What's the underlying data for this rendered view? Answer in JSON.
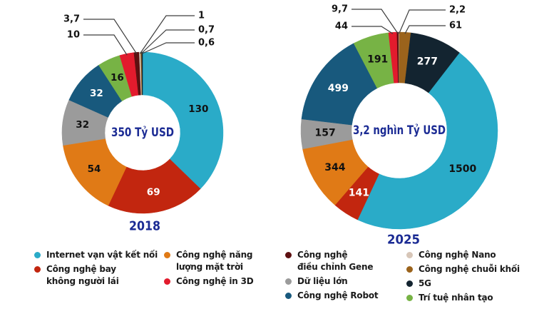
{
  "series": [
    {
      "id": "internet",
      "label": "Internet vạn vật kết nối",
      "legend_label": "Internet vạn vật kết nối",
      "color": "#2aabc8",
      "value_text_color": "#111111"
    },
    {
      "id": "drone",
      "label": "Công nghệ bay không người lái",
      "legend_label": "Công nghệ bay\nkhông người lái",
      "color": "#c2260f",
      "value_text_color": "#ffffff"
    },
    {
      "id": "solar",
      "label": "Công nghệ năng lượng mặt trời",
      "legend_label": "Công nghệ năng\nlượng mặt trời",
      "color": "#e07a16",
      "value_text_color": "#111111"
    },
    {
      "id": "bigdata",
      "label": "Dữ liệu lớn",
      "legend_label": "Dữ liệu lớn",
      "color": "#9b9b9b",
      "value_text_color": "#111111"
    },
    {
      "id": "robot",
      "label": "Công nghệ Robot",
      "legend_label": "Công nghệ Robot",
      "color": "#18597d",
      "value_text_color": "#ffffff"
    },
    {
      "id": "ai",
      "label": "Trí tuệ nhân tạo",
      "legend_label": "Trí tuệ nhân tạo",
      "color": "#77b345",
      "value_text_color": "#111111"
    },
    {
      "id": "print3d",
      "label": "Công nghệ in 3D",
      "legend_label": "Công nghệ in 3D",
      "color": "#e21b2d",
      "value_text_color": "#ffffff"
    },
    {
      "id": "gene",
      "label": "Công nghệ điều chỉnh Gene",
      "legend_label": "Công nghệ\nđiều chỉnh Gene",
      "color": "#5d1011",
      "value_text_color": "#ffffff"
    },
    {
      "id": "nano",
      "label": "Công nghệ Nano",
      "legend_label": "Công nghệ Nano",
      "color": "#d7c6b8",
      "value_text_color": "#111111"
    },
    {
      "id": "blockchain",
      "label": "Công nghệ chuỗi khối",
      "legend_label": "Công nghệ chuỗi khối",
      "color": "#9b631c",
      "value_text_color": "#ffffff"
    },
    {
      "id": "fiveg",
      "label": "5G",
      "legend_label": "5G",
      "color": "#132430",
      "value_text_color": "#ffffff"
    }
  ],
  "chart_data": [
    {
      "type": "pie",
      "subtype": "donut",
      "title": "2018",
      "center_label": "350 Tỷ USD",
      "rotation_deg": 0,
      "order": "clockwise",
      "legend_position": "bottom",
      "categories": [
        "Internet vạn vật kết nối",
        "Công nghệ bay không người lái",
        "Công nghệ năng lượng mặt trời",
        "Dữ liệu lớn",
        "Công nghệ Robot",
        "Trí tuệ nhân tạo",
        "Công nghệ in 3D",
        "Công nghệ điều chỉnh Gene",
        "Công nghệ Nano",
        "Công nghệ chuỗi khối",
        "5G"
      ],
      "values": [
        130,
        69,
        54,
        32,
        32,
        16,
        10,
        3.7,
        1,
        0.7,
        0.6
      ],
      "value_labels": [
        "130",
        "69",
        "54",
        "32",
        "32",
        "16",
        "10",
        "3,7",
        "1",
        "0,7",
        "0,6"
      ],
      "callouts": {
        "print3d": {
          "side": "left",
          "row": 1
        },
        "gene": {
          "side": "left",
          "row": 0
        },
        "nano": {
          "side": "right",
          "row": 0
        },
        "blockchain": {
          "side": "right",
          "row": 1
        },
        "fiveg": {
          "side": "right",
          "row": 2
        }
      }
    },
    {
      "type": "pie",
      "subtype": "donut",
      "title": "2025",
      "center_label": "3,2 nghìn Tỷ USD",
      "rotation_deg": 37.7,
      "order": "clockwise",
      "legend_position": "bottom",
      "categories": [
        "Internet vạn vật kết nối",
        "Công nghệ bay không người lái",
        "Công nghệ năng lượng mặt trời",
        "Dữ liệu lớn",
        "Công nghệ Robot",
        "Trí tuệ nhân tạo",
        "Công nghệ in 3D",
        "Công nghệ điều chỉnh Gene",
        "Công nghệ Nano",
        "Công nghệ chuỗi khối",
        "5G"
      ],
      "values": [
        1500,
        141,
        344,
        157,
        499,
        191,
        44,
        9.7,
        2.2,
        61,
        277
      ],
      "value_labels": [
        "1500",
        "141",
        "344",
        "157",
        "499",
        "191",
        "44",
        "9,7",
        "2,2",
        "61",
        "277"
      ],
      "callouts": {
        "print3d": {
          "side": "left",
          "row": 1
        },
        "gene": {
          "side": "left",
          "row": 0
        },
        "nano": {
          "side": "right",
          "row": 0
        },
        "blockchain": {
          "side": "right",
          "row": 1
        }
      }
    }
  ],
  "legend_columns": [
    [
      "internet",
      "drone"
    ],
    [
      "solar",
      "print3d"
    ],
    [
      "gene",
      "bigdata",
      "robot"
    ],
    [
      "nano",
      "blockchain",
      "fiveg",
      "ai"
    ]
  ],
  "colors": {
    "title_blue": "#1b2b94",
    "callout_line": "#3d3d3d",
    "callout_text": "#131313",
    "legend_text": "#1b1b1b",
    "background": "#ffffff"
  }
}
